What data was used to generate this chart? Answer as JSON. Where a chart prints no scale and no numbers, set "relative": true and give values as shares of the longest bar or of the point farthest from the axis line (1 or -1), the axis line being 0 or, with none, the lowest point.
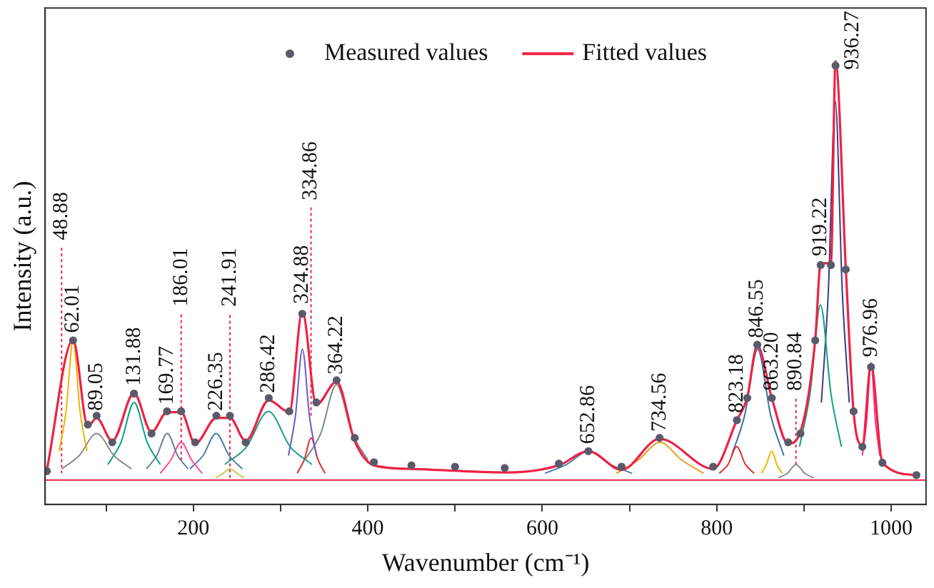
{
  "chart_data": {
    "type": "line",
    "relative": true,
    "xlabel": "Wavenumber (cm⁻¹)",
    "ylabel": "Intensity (a.u.)",
    "xlim": [
      30,
      1040
    ],
    "xticks": [
      {
        "value": 100,
        "label": null
      },
      200,
      {
        "value": 300,
        "label": null
      },
      400,
      {
        "value": 500,
        "label": null
      },
      600,
      {
        "value": 700,
        "label": null
      },
      800,
      {
        "value": 900,
        "label": null
      },
      1000
    ],
    "grid": false,
    "legend": "top",
    "tick_labels": "x",
    "series": [
      {
        "name": "Measured values",
        "type": "scatter",
        "marker": "circle",
        "color": "#5a5a6a",
        "x": [
          32,
          62.01,
          79,
          89.05,
          107,
          131.88,
          152,
          169.77,
          186.01,
          202,
          226.35,
          241.91,
          260,
          286.42,
          310,
          324.88,
          341,
          364.22,
          385,
          407,
          450,
          500,
          557,
          619,
          652.86,
          691,
          734.56,
          796,
          823.18,
          835,
          846.55,
          863.2,
          882,
          896,
          913,
          919.22,
          931,
          936.27,
          948,
          957,
          967,
          976.96,
          990,
          1029
        ],
        "values": [
          0.075,
          0.37,
          0.18,
          0.2,
          0.14,
          0.25,
          0.16,
          0.21,
          0.21,
          0.14,
          0.2,
          0.2,
          0.14,
          0.24,
          0.21,
          0.43,
          0.23,
          0.28,
          0.15,
          0.095,
          0.088,
          0.085,
          0.082,
          0.092,
          0.12,
          0.085,
          0.15,
          0.085,
          0.19,
          0.24,
          0.36,
          0.24,
          0.14,
          0.16,
          0.37,
          0.54,
          0.54,
          0.99,
          0.53,
          0.21,
          0.13,
          0.31,
          0.094,
          0.066
        ]
      },
      {
        "name": "Fitted values",
        "type": "line",
        "marker": "none",
        "color": "#ee2244",
        "x": [
          32,
          62.01,
          79,
          89.05,
          107,
          131.88,
          152,
          169.77,
          186.01,
          202,
          226.35,
          241.91,
          260,
          286.42,
          310,
          324.88,
          341,
          364.22,
          385,
          407,
          450,
          557,
          619,
          652.86,
          691,
          734.56,
          796,
          823.18,
          835,
          846.55,
          863.2,
          882,
          896,
          913,
          919.22,
          931,
          936.27,
          948,
          957,
          967,
          976.96,
          990,
          1029
        ],
        "values": [
          0.078,
          0.371,
          0.176,
          0.195,
          0.143,
          0.251,
          0.163,
          0.208,
          0.208,
          0.137,
          0.195,
          0.195,
          0.143,
          0.235,
          0.208,
          0.436,
          0.225,
          0.277,
          0.143,
          0.088,
          0.08,
          0.072,
          0.088,
          0.12,
          0.078,
          0.148,
          0.08,
          0.19,
          0.241,
          0.359,
          0.24,
          0.137,
          0.164,
          0.371,
          0.544,
          0.544,
          1.0,
          0.534,
          0.208,
          0.134,
          0.316,
          0.094,
          0.066
        ]
      },
      {
        "type": "line",
        "color": "#ee2244",
        "x": [
          30,
          1040
        ],
        "values": [
          0.055,
          0.055
        ]
      },
      {
        "type": "line",
        "color": "#f0b400",
        "x": [
          46,
          54,
          62,
          70,
          78
        ],
        "values": [
          0.12,
          0.21,
          0.37,
          0.21,
          0.12
        ]
      },
      {
        "type": "line",
        "color": "#8c8c8c",
        "x": [
          49,
          69,
          89,
          109,
          129
        ],
        "values": [
          0.08,
          0.11,
          0.16,
          0.11,
          0.08
        ]
      },
      {
        "type": "line",
        "color": "#00a08a",
        "x": [
          102,
          117,
          132,
          147,
          162
        ],
        "values": [
          0.09,
          0.14,
          0.23,
          0.14,
          0.09
        ]
      },
      {
        "type": "line",
        "color": "#6a7f9a",
        "x": [
          146,
          158,
          170,
          182,
          194
        ],
        "values": [
          0.08,
          0.11,
          0.16,
          0.11,
          0.08
        ]
      },
      {
        "type": "line",
        "color": "#ff4d8f",
        "x": [
          162,
          174,
          186,
          198,
          210
        ],
        "values": [
          0.07,
          0.1,
          0.14,
          0.1,
          0.07
        ]
      },
      {
        "type": "line",
        "color": "#4a7fb0",
        "x": [
          196,
          211,
          226,
          241,
          256
        ],
        "values": [
          0.08,
          0.11,
          0.16,
          0.11,
          0.08
        ]
      },
      {
        "type": "line",
        "color": "#c8c850",
        "x": [
          226,
          234,
          242,
          250,
          258
        ],
        "values": [
          0.06,
          0.07,
          0.08,
          0.07,
          0.06
        ]
      },
      {
        "type": "line",
        "color": "#1a9a8a",
        "x": [
          236,
          261,
          286,
          311,
          336
        ],
        "values": [
          0.09,
          0.13,
          0.21,
          0.13,
          0.09
        ]
      },
      {
        "type": "line",
        "color": "#6a5acd",
        "x": [
          309,
          317,
          325,
          333,
          341
        ],
        "values": [
          0.11,
          0.2,
          0.35,
          0.2,
          0.11
        ]
      },
      {
        "type": "line",
        "color": "#e03030",
        "x": [
          319,
          327,
          335,
          343,
          351
        ],
        "values": [
          0.07,
          0.1,
          0.15,
          0.1,
          0.07
        ]
      },
      {
        "type": "line",
        "color": "#7a8a8a",
        "x": [
          328,
          346,
          364,
          382,
          400
        ],
        "values": [
          0.1,
          0.16,
          0.27,
          0.16,
          0.1
        ]
      },
      {
        "type": "line",
        "color": "#4a7fb0",
        "x": [
          603,
          628,
          653,
          678,
          703
        ],
        "values": [
          0.07,
          0.09,
          0.12,
          0.09,
          0.07
        ]
      },
      {
        "type": "line",
        "color": "#e0a020",
        "x": [
          685,
          710,
          735,
          760,
          785
        ],
        "values": [
          0.07,
          0.1,
          0.14,
          0.1,
          0.07
        ]
      },
      {
        "type": "line",
        "color": "#e03030",
        "x": [
          803,
          813,
          823,
          833,
          843
        ],
        "values": [
          0.07,
          0.09,
          0.13,
          0.09,
          0.07
        ]
      },
      {
        "type": "line",
        "color": "#3a6fa0",
        "x": [
          817,
          832,
          847,
          862,
          877
        ],
        "values": [
          0.11,
          0.2,
          0.35,
          0.2,
          0.11
        ]
      },
      {
        "type": "line",
        "color": "#f0b400",
        "x": [
          851,
          857,
          863,
          869,
          875
        ],
        "values": [
          0.07,
          0.09,
          0.12,
          0.09,
          0.07
        ]
      },
      {
        "type": "line",
        "color": "#8c8c8c",
        "x": [
          871,
          881,
          891,
          901,
          911
        ],
        "values": [
          0.06,
          0.07,
          0.09,
          0.07,
          0.06
        ]
      },
      {
        "type": "line",
        "color": "#10a080",
        "x": [
          895,
          907,
          919,
          931,
          943
        ],
        "values": [
          0.13,
          0.25,
          0.45,
          0.25,
          0.13
        ]
      },
      {
        "type": "line",
        "color": "#3a3a8a",
        "x": [
          920,
          928,
          936,
          944,
          952
        ],
        "values": [
          0.23,
          0.48,
          0.91,
          0.48,
          0.23
        ]
      },
      {
        "type": "line",
        "color": "#ff3080",
        "x": [
          967,
          972,
          977,
          982,
          987
        ],
        "values": [
          0.11,
          0.19,
          0.32,
          0.19,
          0.11
        ]
      },
      {
        "type": "line",
        "line_style": "dotted",
        "color": "#ee2244",
        "x": [
          48.88,
          48.88
        ],
        "values": [
          0.07,
          0.58
        ]
      },
      {
        "type": "line",
        "line_style": "dotted",
        "color": "#ee2244",
        "x": [
          186.01,
          186.01
        ],
        "values": [
          0.1,
          0.43
        ]
      },
      {
        "type": "line",
        "line_style": "dotted",
        "color": "#ee2244",
        "x": [
          241.91,
          241.91
        ],
        "values": [
          0.06,
          0.43
        ]
      },
      {
        "type": "line",
        "line_style": "dotted",
        "color": "#ee2244",
        "x": [
          334.86,
          334.86
        ],
        "values": [
          0.2,
          0.67
        ]
      },
      {
        "type": "line",
        "line_style": "dotted",
        "color": "#ee2244",
        "x": [
          890.84,
          890.84
        ],
        "values": [
          0.09,
          0.24
        ]
      }
    ],
    "annotations": [
      {
        "text": "48.88",
        "x": 48.88,
        "y": 0.58
      },
      {
        "text": "62.01",
        "x": 62.01,
        "y": 0.371
      },
      {
        "text": "89.05",
        "x": 89.05,
        "y": 0.195
      },
      {
        "text": "131.88",
        "x": 131.88,
        "y": 0.251
      },
      {
        "text": "169.77",
        "x": 169.77,
        "y": 0.208
      },
      {
        "text": "186.01",
        "x": 186.01,
        "y": 0.43
      },
      {
        "text": "226.35",
        "x": 226.35,
        "y": 0.195
      },
      {
        "text": "241.91",
        "x": 241.91,
        "y": 0.43
      },
      {
        "text": "286.42",
        "x": 286.42,
        "y": 0.235
      },
      {
        "text": "324.88",
        "x": 324.88,
        "y": 0.436
      },
      {
        "text": "334.86",
        "x": 334.86,
        "y": 0.67
      },
      {
        "text": "364.22",
        "x": 364.22,
        "y": 0.277
      },
      {
        "text": "652.86",
        "x": 652.86,
        "y": 0.12
      },
      {
        "text": "734.56",
        "x": 734.56,
        "y": 0.148
      },
      {
        "text": "823.18",
        "x": 823.18,
        "y": 0.19
      },
      {
        "text": "846.55",
        "x": 846.55,
        "y": 0.359
      },
      {
        "text": "863.20",
        "x": 863.2,
        "y": 0.24
      },
      {
        "text": "890.84",
        "x": 890.84,
        "y": 0.24
      },
      {
        "text": "919.22",
        "x": 919.22,
        "y": 0.544
      },
      {
        "text": "936.27",
        "x": 936.27,
        "y": 1.0
      },
      {
        "text": "976.96",
        "x": 976.96,
        "y": 0.316
      }
    ]
  }
}
